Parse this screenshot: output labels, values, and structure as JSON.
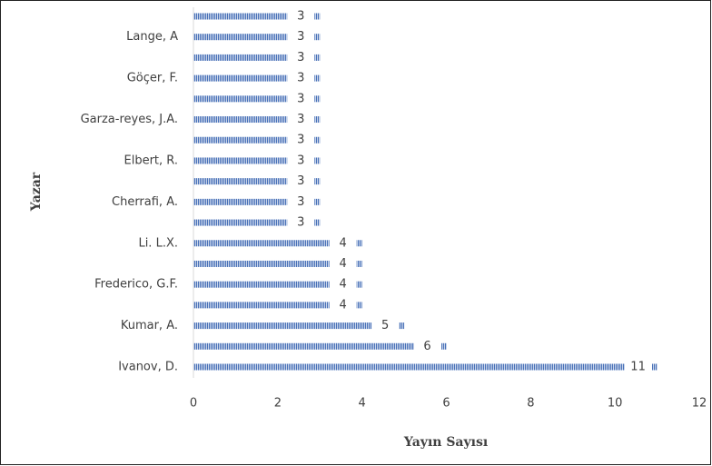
{
  "chart_data": {
    "type": "bar",
    "orientation": "horizontal",
    "x_label": "Yayın Sayısı",
    "y_label": "Yazar",
    "categories": [
      "Ivanov, D.",
      null,
      "Kumar, A.",
      null,
      "Frederico, G.F.",
      null,
      "Li. L.X.",
      null,
      "Cherrafi, A.",
      null,
      "Elbert, R.",
      null,
      "Garza-reyes, J.A.",
      null,
      "Göçer, F.",
      null,
      "Lange, A",
      null
    ],
    "values": [
      11,
      6,
      5,
      4,
      4,
      4,
      4,
      3,
      3,
      3,
      3,
      3,
      3,
      3,
      3,
      3,
      3,
      3
    ],
    "color": "#4a72b8",
    "xlim": [
      0,
      12
    ],
    "xticks": [
      0,
      2,
      4,
      6,
      8,
      10,
      12
    ],
    "grid": false
  }
}
